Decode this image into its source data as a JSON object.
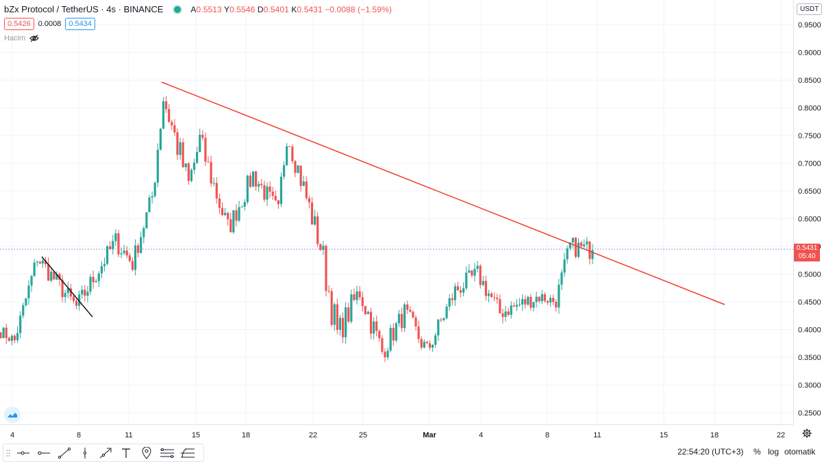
{
  "header": {
    "symbol": "bZx Protocol / TetherUS · 4s · BINANCE",
    "ohlc": {
      "o_label": "A",
      "o": "0.5513",
      "h_label": "Y",
      "h": "0.5546",
      "l_label": "D",
      "l": "0.5401",
      "c_label": "K",
      "c": "0.5431",
      "change": "−0.0088 (−1.59%)"
    }
  },
  "quote": {
    "sell": "0.5426",
    "spread": "0.0008",
    "buy": "0.5434"
  },
  "volume_label": "Hacim",
  "currency": "USDT",
  "last_price": {
    "price": "0.5431",
    "countdown": "05:40"
  },
  "footer": {
    "time": "22:54:20 (UTC+3)",
    "percent": "%",
    "log": "log",
    "auto": "otomatik"
  },
  "colors": {
    "up": "#26a69a",
    "down": "#ef5350",
    "trendline": "#f23a2d"
  },
  "icons": [
    "drag-grip-icon",
    "horizontal-ray-icon",
    "horizontal-line-icon",
    "trend-line-icon",
    "vertical-line-icon",
    "arrow-line-icon",
    "text-icon",
    "pin-icon",
    "channel-icon",
    "fib-icon"
  ],
  "chart_data": {
    "type": "candlestick",
    "y_ticks": [
      "0.9500",
      "0.9000",
      "0.8500",
      "0.8000",
      "0.7500",
      "0.7000",
      "0.6500",
      "0.6000",
      "0.5500",
      "0.5000",
      "0.4500",
      "0.4000",
      "0.3500",
      "0.3000",
      "0.2500"
    ],
    "ylim": [
      0.23,
      0.97
    ],
    "x_ticks": [
      "4",
      "8",
      "11",
      "15",
      "18",
      "22",
      "25",
      "Mar",
      "4",
      "8",
      "11",
      "15",
      "18",
      "22"
    ],
    "series": [
      {
        "from": 0.4,
        "to": 0.38,
        "n": 6,
        "noise": 0.012
      },
      {
        "from": 0.38,
        "to": 0.53,
        "n": 8,
        "noise": 0.015
      },
      {
        "from": 0.53,
        "to": 0.44,
        "n": 14,
        "noise": 0.018
      },
      {
        "from": 0.44,
        "to": 0.56,
        "n": 14,
        "noise": 0.018
      },
      {
        "from": 0.56,
        "to": 0.52,
        "n": 6,
        "noise": 0.02
      },
      {
        "from": 0.52,
        "to": 0.64,
        "n": 7,
        "noise": 0.018
      },
      {
        "from": 0.64,
        "to": 0.82,
        "n": 4,
        "noise": 0.03
      },
      {
        "from": 0.82,
        "to": 0.66,
        "n": 9,
        "noise": 0.03
      },
      {
        "from": 0.66,
        "to": 0.74,
        "n": 4,
        "noise": 0.03
      },
      {
        "from": 0.74,
        "to": 0.58,
        "n": 10,
        "noise": 0.025
      },
      {
        "from": 0.58,
        "to": 0.68,
        "n": 9,
        "noise": 0.02
      },
      {
        "from": 0.68,
        "to": 0.61,
        "n": 9,
        "noise": 0.02
      },
      {
        "from": 0.61,
        "to": 0.76,
        "n": 3,
        "noise": 0.03
      },
      {
        "from": 0.76,
        "to": 0.55,
        "n": 12,
        "noise": 0.025
      },
      {
        "from": 0.55,
        "to": 0.39,
        "n": 6,
        "noise": 0.035
      },
      {
        "from": 0.39,
        "to": 0.47,
        "n": 8,
        "noise": 0.025
      },
      {
        "from": 0.47,
        "to": 0.36,
        "n": 8,
        "noise": 0.025
      },
      {
        "from": 0.36,
        "to": 0.43,
        "n": 8,
        "noise": 0.02
      },
      {
        "from": 0.43,
        "to": 0.36,
        "n": 8,
        "noise": 0.02
      },
      {
        "from": 0.36,
        "to": 0.47,
        "n": 10,
        "noise": 0.018
      },
      {
        "from": 0.47,
        "to": 0.5,
        "n": 8,
        "noise": 0.018
      },
      {
        "from": 0.5,
        "to": 0.43,
        "n": 8,
        "noise": 0.018
      },
      {
        "from": 0.43,
        "to": 0.46,
        "n": 14,
        "noise": 0.015
      },
      {
        "from": 0.46,
        "to": 0.45,
        "n": 6,
        "noise": 0.012
      },
      {
        "from": 0.45,
        "to": 0.55,
        "n": 5,
        "noise": 0.02
      },
      {
        "from": 0.55,
        "to": 0.5431,
        "n": 8,
        "noise": 0.018
      }
    ]
  }
}
